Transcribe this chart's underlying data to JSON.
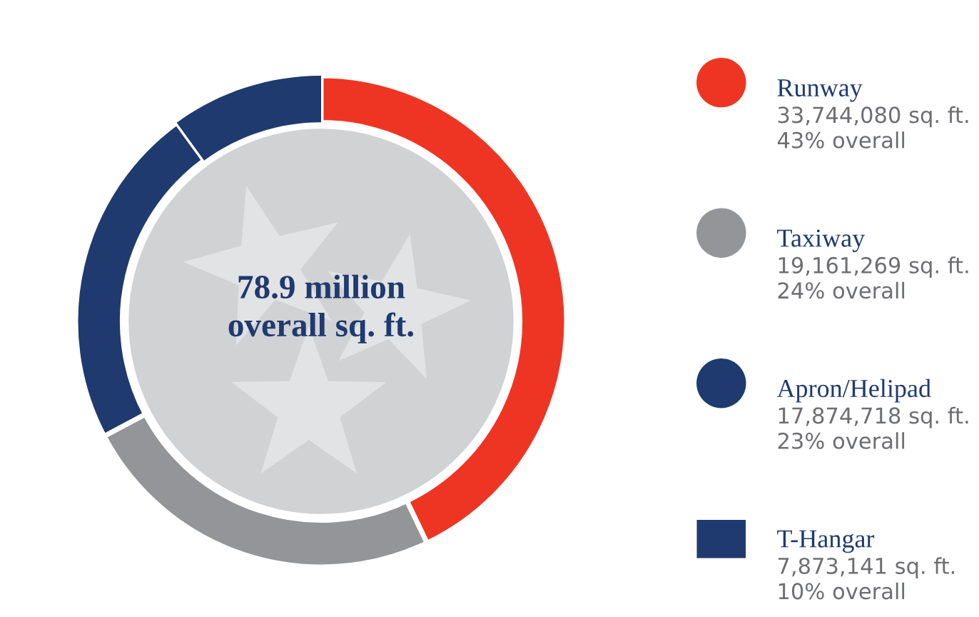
{
  "chart_data": {
    "type": "donut",
    "categories": [
      "Runway",
      "Taxiway",
      "Apron/Helipad",
      "T-Hangar"
    ],
    "values": [
      33744080,
      19161269,
      17874718,
      7873141
    ],
    "colors": [
      "#ee3524",
      "#939598",
      "#1f3a6e",
      "#1f3a6e"
    ],
    "value_labels": [
      "33,744,080 sq. ft.\n43% overall",
      "19,161,269 sq. ft.\n24% overall",
      "17,874,718 sq. ft.\n23% overall",
      "7,873,141 sq. ft.\n10% overall"
    ],
    "annotations": [
      "78.9 million\noverall sq. ft."
    ],
    "legend": "right"
  }
}
